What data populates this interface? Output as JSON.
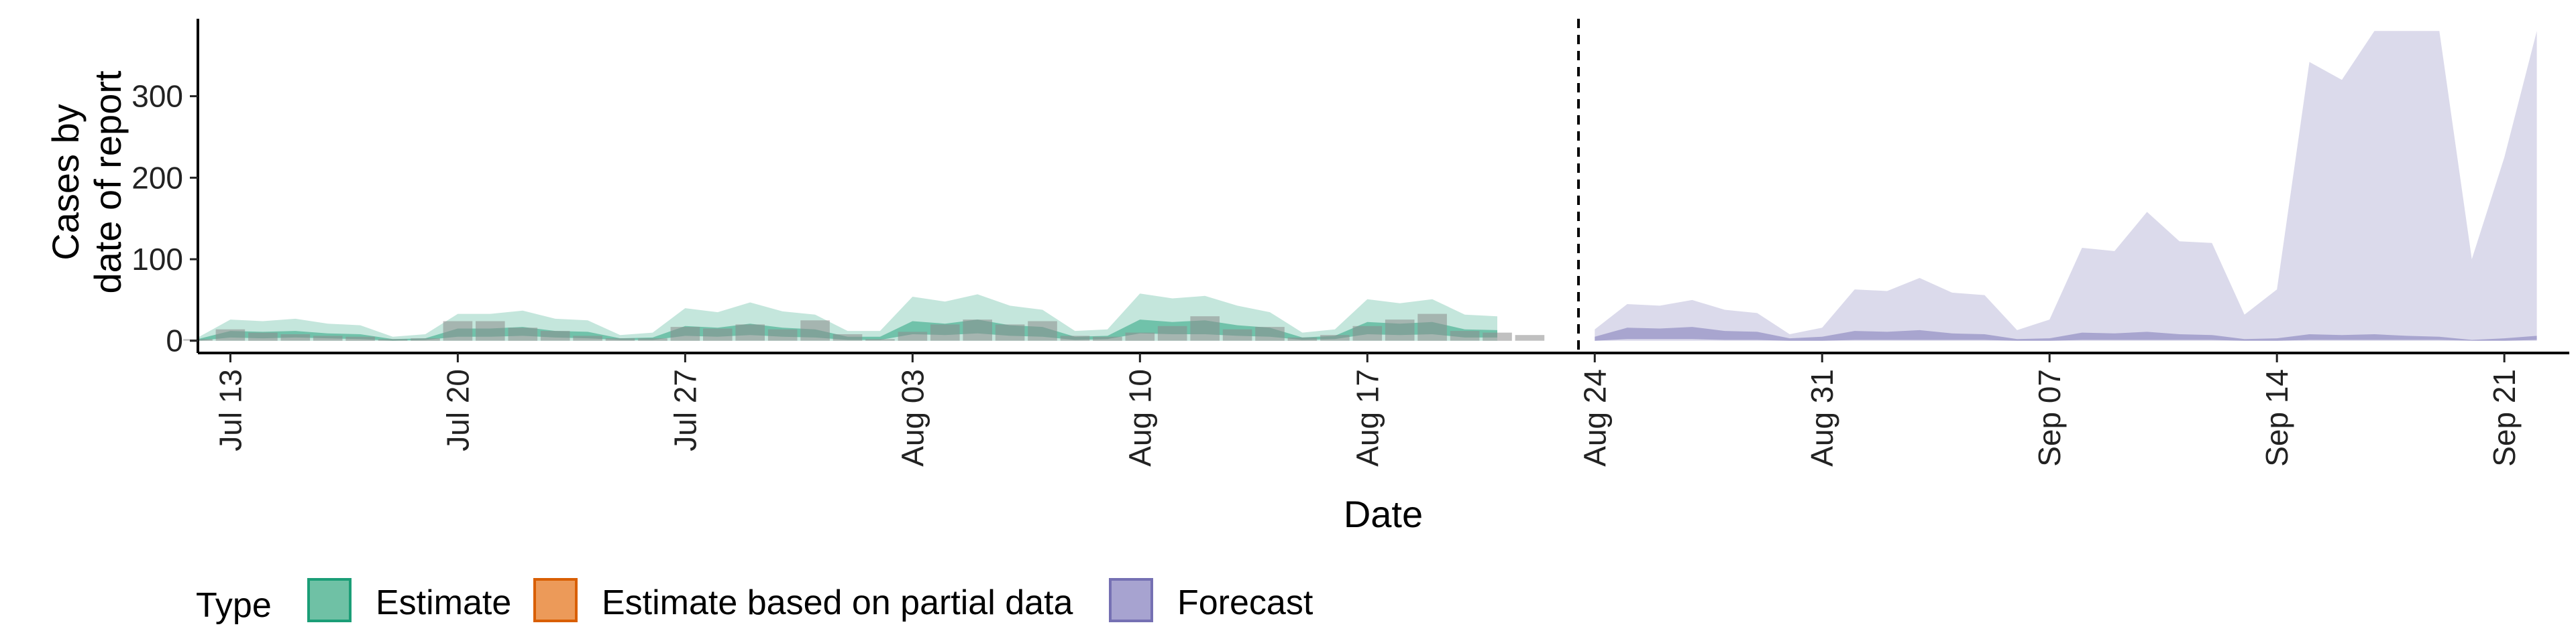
{
  "chart_data": {
    "type": "area",
    "xlabel": "Date",
    "ylabel_lines": [
      "Cases by",
      "date of report"
    ],
    "ylim": [
      -15,
      395
    ],
    "y_ticks": [
      0,
      100,
      200,
      300
    ],
    "x_domain": [
      0,
      73
    ],
    "x_ticks": [
      {
        "day": 1,
        "label": "Jul 13"
      },
      {
        "day": 8,
        "label": "Jul 20"
      },
      {
        "day": 15,
        "label": "Jul 27"
      },
      {
        "day": 22,
        "label": "Aug 03"
      },
      {
        "day": 29,
        "label": "Aug 10"
      },
      {
        "day": 36,
        "label": "Aug 17"
      },
      {
        "day": 43,
        "label": "Aug 24"
      },
      {
        "day": 50,
        "label": "Aug 31"
      },
      {
        "day": 57,
        "label": "Sep 07"
      },
      {
        "day": 64,
        "label": "Sep 14"
      },
      {
        "day": 71,
        "label": "Sep 21"
      }
    ],
    "forecast_start_day": 42.5,
    "legend_title": "Type",
    "legend_items": [
      {
        "label": "Estimate",
        "fill": "#6fc1a5",
        "stroke": "#1b9e77"
      },
      {
        "label": "Estimate based on partial data",
        "fill": "#ec9a59",
        "stroke": "#d95f02"
      },
      {
        "label": "Forecast",
        "fill": "#a7a3d0",
        "stroke": "#7570b3"
      }
    ],
    "colors": {
      "estimate_outer": "#1b9e77",
      "estimate_inner": "#1b9e77",
      "forecast_outer": "#7570b3",
      "forecast_inner": "#7570b3",
      "observed_bars": "#8c8c8c"
    },
    "series": [
      {
        "name": "Estimate",
        "start_day": 0,
        "outer_upper": [
          4,
          26,
          24,
          27,
          21,
          19,
          5,
          8,
          33,
          33,
          37,
          27,
          25,
          7,
          10,
          40,
          35,
          47,
          36,
          32,
          12,
          12,
          54,
          48,
          57,
          43,
          38,
          12,
          14,
          58,
          52,
          55,
          43,
          35,
          10,
          14,
          51,
          46,
          51,
          32,
          30
        ],
        "outer_lower": [
          0,
          0,
          0,
          0,
          0,
          0,
          0,
          0,
          0,
          0,
          0,
          0,
          0,
          0,
          0,
          0,
          0,
          0,
          0,
          0,
          0,
          0,
          0,
          0,
          0,
          0,
          0,
          0,
          0,
          0,
          0,
          0,
          0,
          0,
          0,
          0,
          0,
          0,
          0,
          0,
          0
        ],
        "inner_upper": [
          2,
          12,
          11,
          12,
          9,
          8,
          2,
          3,
          15,
          15,
          17,
          12,
          11,
          3,
          4,
          18,
          16,
          21,
          16,
          14,
          5,
          5,
          24,
          21,
          26,
          19,
          17,
          5,
          6,
          26,
          23,
          25,
          19,
          16,
          4,
          6,
          23,
          21,
          23,
          14,
          13
        ],
        "inner_lower": [
          0,
          4,
          3,
          4,
          3,
          2,
          0,
          1,
          5,
          5,
          6,
          4,
          3,
          1,
          1,
          6,
          5,
          7,
          5,
          4,
          1,
          1,
          8,
          7,
          9,
          6,
          5,
          1,
          2,
          9,
          8,
          8,
          6,
          5,
          1,
          2,
          8,
          7,
          8,
          4,
          4
        ]
      },
      {
        "name": "Forecast",
        "start_day": 43,
        "outer_upper": [
          14,
          45,
          43,
          50,
          38,
          34,
          8,
          16,
          63,
          61,
          77,
          59,
          56,
          13,
          26,
          114,
          110,
          158,
          122,
          120,
          32,
          63,
          342,
          320,
          380,
          380,
          380,
          100,
          225,
          380
        ],
        "outer_lower": [
          0,
          0,
          0,
          0,
          0,
          0,
          0,
          0,
          0,
          0,
          0,
          0,
          0,
          0,
          0,
          0,
          0,
          0,
          0,
          0,
          0,
          0,
          0,
          0,
          0,
          0,
          0,
          0,
          0,
          0
        ],
        "inner_upper": [
          5,
          16,
          15,
          17,
          12,
          11,
          3,
          5,
          12,
          11,
          13,
          9,
          8,
          2,
          3,
          10,
          9,
          11,
          8,
          7,
          2,
          3,
          8,
          7,
          8,
          6,
          5,
          1,
          3,
          6
        ],
        "inner_lower": [
          0,
          2,
          2,
          2,
          1,
          1,
          0,
          0,
          1,
          1,
          1,
          1,
          1,
          0,
          0,
          1,
          1,
          1,
          1,
          1,
          0,
          0,
          1,
          1,
          1,
          1,
          1,
          0,
          0,
          1
        ]
      }
    ],
    "observed_bars": {
      "start_day": 0,
      "values": [
        2,
        14,
        10,
        8,
        6,
        5,
        2,
        3,
        24,
        24,
        16,
        12,
        6,
        3,
        3,
        17,
        15,
        20,
        14,
        25,
        8,
        2,
        11,
        20,
        26,
        20,
        24,
        6,
        5,
        10,
        18,
        30,
        14,
        17,
        4,
        7,
        18,
        26,
        33,
        12,
        10,
        7
      ]
    }
  }
}
